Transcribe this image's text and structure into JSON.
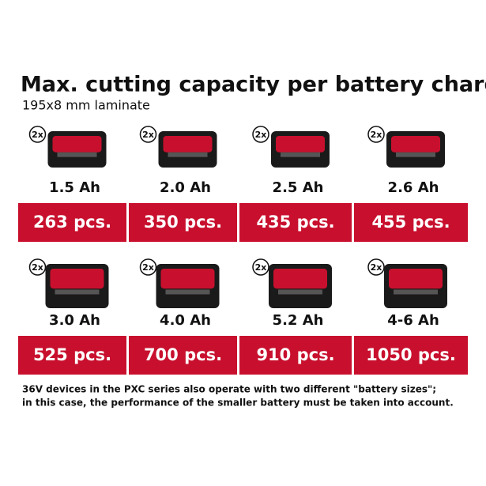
{
  "header": {
    "title": "Max. cutting capacity per battery charge",
    "subtitle": "195x8 mm laminate"
  },
  "rows": [
    {
      "items": [
        {
          "badge": "2x",
          "capacity": "1.5 Ah",
          "output": "263 pcs."
        },
        {
          "badge": "2x",
          "capacity": "2.0 Ah",
          "output": "350 pcs."
        },
        {
          "badge": "2x",
          "capacity": "2.5 Ah",
          "output": "435 pcs."
        },
        {
          "badge": "2x",
          "capacity": "2.6 Ah",
          "output": "455 pcs."
        }
      ]
    },
    {
      "items": [
        {
          "badge": "2x",
          "capacity": "3.0 Ah",
          "output": "525 pcs."
        },
        {
          "badge": "2x",
          "capacity": "4.0 Ah",
          "output": "700 pcs."
        },
        {
          "badge": "2x",
          "capacity": "5.2 Ah",
          "output": "910 pcs."
        },
        {
          "badge": "2x",
          "capacity": "4-6 Ah",
          "output": "1050 pcs."
        }
      ]
    }
  ],
  "footnote": [
    "36V devices in the PXC series also operate with two different \"battery sizes\";",
    "in this case, the performance of the smaller battery must be taken into account."
  ]
}
